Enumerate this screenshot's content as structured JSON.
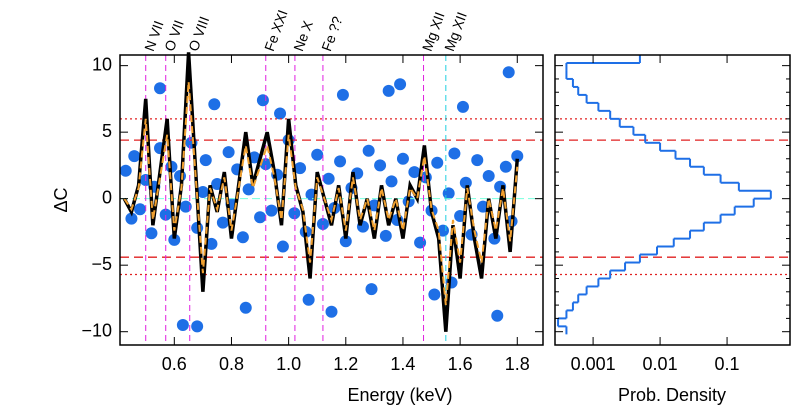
{
  "chart_data": [
    {
      "type": "scatter",
      "xlabel": "Energy (keV)",
      "ylabel": "ΔC",
      "xlim": [
        0.41,
        1.89
      ],
      "ylim": [
        -11,
        10.8
      ],
      "xticks": [
        0.6,
        0.8,
        {
          "value": 1,
          "label": "1.0"
        },
        1.2,
        1.4,
        1.6,
        1.8
      ],
      "yticks": [
        {
          "value": -10,
          "label": "−10"
        },
        {
          "value": -5,
          "label": "−5"
        },
        0,
        5,
        10
      ],
      "color": "#1e6fe6",
      "x": [
        0.43,
        0.45,
        0.46,
        0.48,
        0.5,
        0.52,
        0.53,
        0.55,
        0.57,
        0.59,
        0.6,
        0.62,
        0.64,
        0.66,
        0.68,
        0.7,
        0.71,
        0.73,
        0.75,
        0.77,
        0.79,
        0.8,
        0.82,
        0.84,
        0.86,
        0.88,
        0.9,
        0.92,
        0.94,
        0.96,
        0.98,
        1.0,
        1.02,
        1.04,
        1.06,
        1.08,
        1.1,
        1.12,
        1.14,
        1.16,
        1.18,
        1.2,
        1.22,
        1.24,
        1.26,
        1.28,
        1.3,
        1.32,
        1.34,
        1.36,
        1.38,
        1.4,
        1.42,
        1.44,
        1.46,
        1.48,
        1.5,
        1.52,
        1.54,
        1.56,
        1.58,
        1.6,
        1.62,
        1.64,
        1.66,
        1.68,
        1.7,
        1.72,
        1.74,
        1.76,
        1.78,
        1.8,
        0.55,
        0.63,
        0.74,
        0.85,
        0.97,
        1.07,
        1.19,
        1.29,
        1.39,
        1.51,
        1.61,
        1.73,
        0.68,
        0.91,
        1.15,
        1.35,
        1.57,
        1.77
      ],
      "values": [
        2.1,
        -1.5,
        3.2,
        -0.8,
        1.4,
        -2.6,
        0.9,
        3.8,
        -1.2,
        2.4,
        -3.1,
        1.7,
        -0.6,
        4.2,
        -2.2,
        0.5,
        2.9,
        -3.4,
        1.1,
        -1.8,
        3.5,
        -0.4,
        2.2,
        -2.9,
        0.7,
        3.1,
        -1.4,
        2.6,
        -0.9,
        1.8,
        -3.6,
        4.4,
        -1.1,
        2.3,
        -2.5,
        0.3,
        3.3,
        -1.9,
        1.5,
        -0.7,
        2.8,
        -3.2,
        0.8,
        1.9,
        -2.1,
        3.6,
        -0.5,
        2.5,
        -2.8,
        1.3,
        -1.6,
        3.0,
        -0.2,
        2.0,
        -3.3,
        1.6,
        -0.9,
        2.7,
        -2.4,
        0.4,
        3.4,
        -1.3,
        1.2,
        -2.7,
        2.9,
        -0.6,
        1.7,
        -3.0,
        0.9,
        2.4,
        -1.7,
        3.2,
        8.3,
        -9.5,
        7.1,
        -8.2,
        6.4,
        -7.6,
        7.8,
        -6.8,
        8.6,
        -7.2,
        6.9,
        -8.8,
        -9.6,
        7.4,
        -8.5,
        8.1,
        -6.3,
        9.5
      ],
      "line_x": [
        0.425,
        0.45,
        0.475,
        0.5,
        0.525,
        0.55,
        0.575,
        0.6,
        0.625,
        0.65,
        0.675,
        0.7,
        0.725,
        0.75,
        0.775,
        0.8,
        0.825,
        0.85,
        0.875,
        0.9,
        0.925,
        0.95,
        0.975,
        1.0,
        1.025,
        1.05,
        1.075,
        1.1,
        1.125,
        1.15,
        1.175,
        1.2,
        1.225,
        1.25,
        1.275,
        1.3,
        1.325,
        1.35,
        1.375,
        1.4,
        1.425,
        1.45,
        1.475,
        1.5,
        1.525,
        1.55,
        1.575,
        1.6,
        1.625,
        1.65,
        1.675,
        1.7,
        1.725,
        1.75,
        1.775,
        1.8
      ],
      "lines": [
        {
          "color": "#000000",
          "dash": false,
          "values": [
            0,
            -1,
            1,
            7.5,
            -2,
            2,
            6,
            -3,
            1,
            11,
            2,
            -7,
            1,
            -1,
            2,
            -3,
            1,
            5,
            1,
            3,
            5,
            2,
            -2,
            6,
            1,
            -1,
            -6,
            2,
            0,
            -2,
            1,
            -3,
            2,
            -2,
            0,
            -3,
            1,
            -2,
            0,
            -3,
            1,
            0,
            4,
            -1,
            -3,
            -10,
            -2,
            -6,
            1,
            -3,
            -6,
            0,
            -3,
            1,
            -4,
            3
          ]
        },
        {
          "color": "#f0a030",
          "dash": true,
          "values": [
            0,
            -0.8,
            0.8,
            6,
            -1.6,
            1.6,
            4.8,
            -2.4,
            0.8,
            8.8,
            1.6,
            -5.6,
            0.8,
            -0.8,
            1.6,
            -2.4,
            0.8,
            4,
            0.8,
            2.4,
            4,
            1.6,
            -1.6,
            4.8,
            0.8,
            -0.8,
            -4.8,
            1.6,
            0,
            -1.6,
            0.8,
            -2.4,
            1.6,
            -1.6,
            0,
            -2.4,
            0.8,
            -1.6,
            0,
            -2.4,
            0.8,
            0,
            3.2,
            -0.8,
            -2.4,
            -8,
            -1.6,
            -4.8,
            0.8,
            -2.4,
            -4.8,
            0,
            -2.4,
            0.8,
            -3.2,
            2.4
          ]
        }
      ],
      "vlines": [
        {
          "value": 0.5,
          "label": "N VII",
          "color": "#e020e0"
        },
        {
          "value": 0.57,
          "label": "O VII",
          "color": "#e020e0"
        },
        {
          "value": 0.654,
          "label": "O VIII",
          "color": "#e020e0"
        },
        {
          "value": 0.92,
          "label": "Fe XXI",
          "color": "#e020e0"
        },
        {
          "value": 1.022,
          "label": "Ne X",
          "color": "#e020e0"
        },
        {
          "value": 1.12,
          "label": "Fe ??",
          "color": "#e020e0"
        },
        {
          "value": 1.472,
          "label": "Mg XII",
          "color": "#e020e0"
        },
        {
          "value": 1.55,
          "label": "Mg XII",
          "color": "#20d0e0"
        }
      ],
      "hlines": [
        {
          "value": 4.4,
          "color": "#e02020",
          "style": "dashed"
        },
        {
          "value": -4.4,
          "color": "#e02020",
          "style": "dashed"
        },
        {
          "value": 6,
          "color": "#e02020",
          "style": "dotted"
        },
        {
          "value": -5.7,
          "color": "#e02020",
          "style": "dotted"
        }
      ]
    },
    {
      "type": "histogram",
      "xlabel": "Prob. Density",
      "xscale": "log",
      "color": "#1e6fe6",
      "xlim": [
        0.00027,
        0.87
      ],
      "xticks": [
        0.001,
        0.01,
        0.1
      ],
      "ylim": [
        -11,
        10.8
      ],
      "bins": [
        -10.2,
        -9.6,
        -9.0,
        -8.4,
        -7.8,
        -7.2,
        -6.6,
        -6.0,
        -5.4,
        -4.8,
        -4.2,
        -3.6,
        -3.0,
        -2.4,
        -1.8,
        -1.2,
        -0.6,
        0.0,
        0.6,
        1.2,
        1.8,
        2.4,
        3.0,
        3.6,
        4.2,
        4.8,
        5.4,
        6.0,
        6.6,
        7.2,
        7.8,
        8.4,
        9.0,
        9.6,
        10.2,
        10.8
      ],
      "values": [
        0.0004,
        0.0003,
        0.0004,
        0.0005,
        0.0006,
        0.0008,
        0.0012,
        0.0018,
        0.003,
        0.005,
        0.009,
        0.016,
        0.028,
        0.045,
        0.08,
        0.13,
        0.25,
        0.45,
        0.15,
        0.08,
        0.045,
        0.028,
        0.017,
        0.01,
        0.006,
        0.004,
        0.0025,
        0.0018,
        0.0012,
        0.0008,
        0.0006,
        0.0005,
        0.0004,
        0.0004,
        0.005
      ],
      "hlines": [
        {
          "value": 4.4,
          "color": "#e02020",
          "style": "dashed"
        },
        {
          "value": -4.4,
          "color": "#e02020",
          "style": "dashed"
        },
        {
          "value": 6,
          "color": "#e02020",
          "style": "dotted"
        },
        {
          "value": -5.7,
          "color": "#e02020",
          "style": "dotted"
        }
      ]
    }
  ]
}
